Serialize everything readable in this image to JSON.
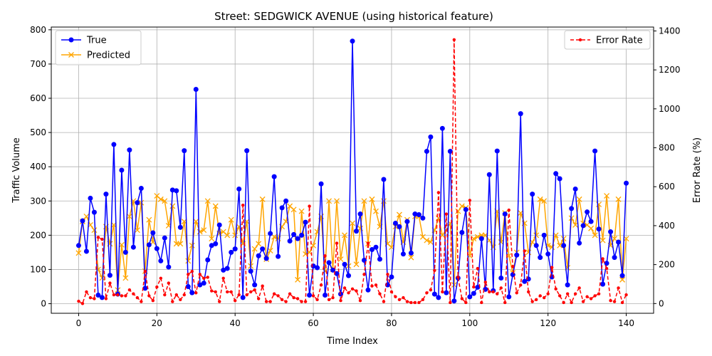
{
  "chart_data": {
    "type": "line",
    "title": "Street: SEDGWICK AVENUE (using historical feature)",
    "xlabel": "Time Index",
    "ylabel": "Traffic Volume",
    "y2label": "Error Rate (%)",
    "xlim": [
      -7,
      147
    ],
    "ylim": [
      -28,
      808
    ],
    "y2lim": [
      -50,
      1420
    ],
    "xticks": [
      0,
      20,
      40,
      60,
      80,
      100,
      120,
      140
    ],
    "yticks": [
      0,
      100,
      200,
      300,
      400,
      500,
      600,
      700,
      800
    ],
    "y2ticks": [
      0,
      200,
      400,
      600,
      800,
      1000,
      1200,
      1400
    ],
    "grid": true,
    "legend_left_placement": "upper-left",
    "legend_right_placement": "upper-right",
    "series": [
      {
        "name": "True",
        "axis": "left",
        "color": "#0000ff",
        "marker": "circle",
        "linestyle": "solid",
        "values": [
          170,
          242,
          153,
          308,
          267,
          25,
          18,
          320,
          83,
          465,
          28,
          390,
          150,
          449,
          165,
          295,
          337,
          45,
          172,
          207,
          161,
          125,
          192,
          107,
          332,
          330,
          223,
          447,
          50,
          32,
          626,
          55,
          60,
          128,
          170,
          175,
          230,
          98,
          103,
          150,
          160,
          335,
          18,
          447,
          95,
          55,
          140,
          160,
          132,
          205,
          371,
          138,
          280,
          300,
          183,
          202,
          190,
          200,
          238,
          25,
          110,
          105,
          350,
          25,
          120,
          98,
          88,
          28,
          115,
          82,
          767,
          212,
          262,
          127,
          40,
          158,
          165,
          130,
          363,
          55,
          78,
          235,
          225,
          145,
          240,
          148,
          262,
          260,
          250,
          445,
          487,
          28,
          18,
          512,
          32,
          445,
          8,
          75,
          208,
          275,
          20,
          30,
          48,
          190,
          42,
          377,
          38,
          446,
          75,
          262,
          20,
          85,
          142,
          555,
          65,
          72,
          320,
          170,
          135,
          200,
          145,
          78,
          380,
          365,
          170,
          55,
          278,
          335,
          177,
          228,
          268,
          240,
          446,
          218,
          57,
          118,
          210,
          135,
          180,
          82,
          352
        ]
      },
      {
        "name": "Predicted",
        "axis": "left",
        "color": "#ffa500",
        "marker": "x",
        "linestyle": "solid",
        "values": [
          148,
          240,
          255,
          230,
          215,
          100,
          75,
          225,
          175,
          230,
          40,
          172,
          75,
          255,
          300,
          215,
          295,
          95,
          245,
          180,
          315,
          305,
          300,
          228,
          285,
          175,
          175,
          240,
          125,
          170,
          240,
          210,
          215,
          300,
          190,
          285,
          205,
          210,
          200,
          245,
          200,
          225,
          175,
          240,
          110,
          160,
          175,
          305,
          130,
          155,
          195,
          190,
          225,
          240,
          285,
          275,
          70,
          270,
          145,
          150,
          170,
          210,
          255,
          95,
          300,
          100,
          300,
          130,
          200,
          110,
          235,
          115,
          220,
          300,
          175,
          305,
          270,
          225,
          300,
          175,
          165,
          225,
          260,
          180,
          245,
          135,
          255,
          255,
          195,
          185,
          180,
          215,
          250,
          200,
          215,
          235,
          55,
          270,
          285,
          280,
          140,
          190,
          195,
          200,
          200,
          185,
          165,
          270,
          180,
          265,
          140,
          90,
          150,
          265,
          235,
          150,
          180,
          200,
          305,
          300,
          170,
          165,
          200,
          170,
          190,
          105,
          250,
          230,
          305,
          235,
          230,
          220,
          200,
          290,
          185,
          315,
          170,
          190,
          305,
          70,
          190
        ]
      },
      {
        "name": "Error Rate",
        "axis": "right",
        "color": "#ff0000",
        "marker": "dot",
        "linestyle": "dashed",
        "values": [
          12,
          0,
          60,
          30,
          25,
          340,
          330,
          25,
          105,
          45,
          45,
          40,
          40,
          70,
          50,
          30,
          10,
          165,
          40,
          15,
          85,
          130,
          45,
          105,
          10,
          45,
          20,
          45,
          150,
          165,
          55,
          150,
          130,
          135,
          65,
          60,
          10,
          130,
          60,
          60,
          15,
          45,
          505,
          45,
          60,
          70,
          25,
          90,
          10,
          10,
          50,
          40,
          20,
          10,
          50,
          30,
          25,
          10,
          10,
          500,
          40,
          20,
          95,
          245,
          20,
          30,
          310,
          15,
          80,
          55,
          75,
          65,
          15,
          150,
          310,
          90,
          95,
          50,
          10,
          150,
          60,
          35,
          20,
          30,
          10,
          5,
          5,
          5,
          20,
          55,
          70,
          170,
          570,
          60,
          460,
          5,
          1355,
          135,
          25,
          5,
          530,
          85,
          180,
          5,
          110,
          60,
          60,
          50,
          80,
          5,
          480,
          190,
          55,
          95,
          270,
          60,
          10,
          20,
          40,
          30,
          50,
          185,
          75,
          40,
          5,
          50,
          5,
          50,
          80,
          10,
          35,
          25,
          40,
          50,
          230,
          180,
          15,
          10,
          80,
          5,
          45
        ]
      }
    ]
  }
}
